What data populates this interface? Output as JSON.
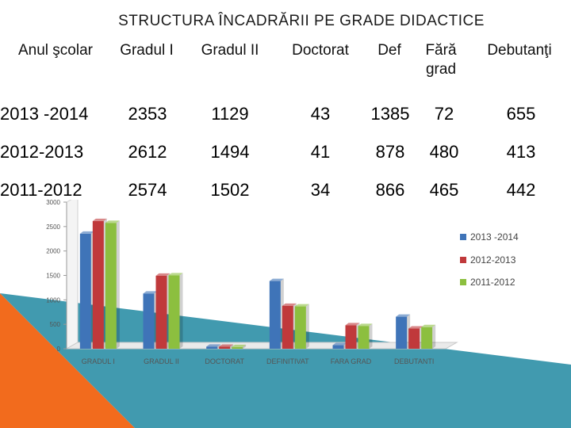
{
  "title": "STRUCTURA ÎNCADRĂRII PE GRADE DIDACTICE",
  "table": {
    "headers": [
      "Anul şcolar",
      "Gradul I",
      "Gradul II",
      "Doctorat",
      "Def",
      "Fără grad",
      "Debutanţi"
    ],
    "rows": [
      {
        "year": "2013 -2014",
        "values": [
          "2353",
          "1129",
          "43",
          "1385",
          "72",
          "655"
        ]
      },
      {
        "year": "2012-2013",
        "values": [
          "2612",
          "1494",
          "41",
          "878",
          "480",
          "413"
        ]
      },
      {
        "year": "2011-2012",
        "values": [
          "2574",
          "1502",
          "34",
          "866",
          "465",
          "442"
        ]
      }
    ]
  },
  "colors": {
    "series": [
      "#3f74b8",
      "#c0393b",
      "#8cbf3f"
    ],
    "orange": "#f26b1d",
    "teal": "#2c8fa6"
  },
  "chart_data": {
    "type": "bar",
    "categories": [
      "GRADUL I",
      "GRADUL II",
      "DOCTORAT",
      "DEFINITIVAT",
      "FARA GRAD",
      "DEBUTANTI"
    ],
    "series": [
      {
        "name": "2013 -2014",
        "values": [
          2353,
          1129,
          43,
          1385,
          72,
          655
        ]
      },
      {
        "name": "2012-2013",
        "values": [
          2612,
          1494,
          41,
          878,
          480,
          413
        ]
      },
      {
        "name": "2011-2012",
        "values": [
          2574,
          1502,
          34,
          866,
          465,
          442
        ]
      }
    ],
    "yticks": [
      0,
      500,
      1000,
      1500,
      2000,
      2500,
      3000
    ],
    "ylim": [
      0,
      3000
    ],
    "legend_position": "right",
    "grid": false
  }
}
